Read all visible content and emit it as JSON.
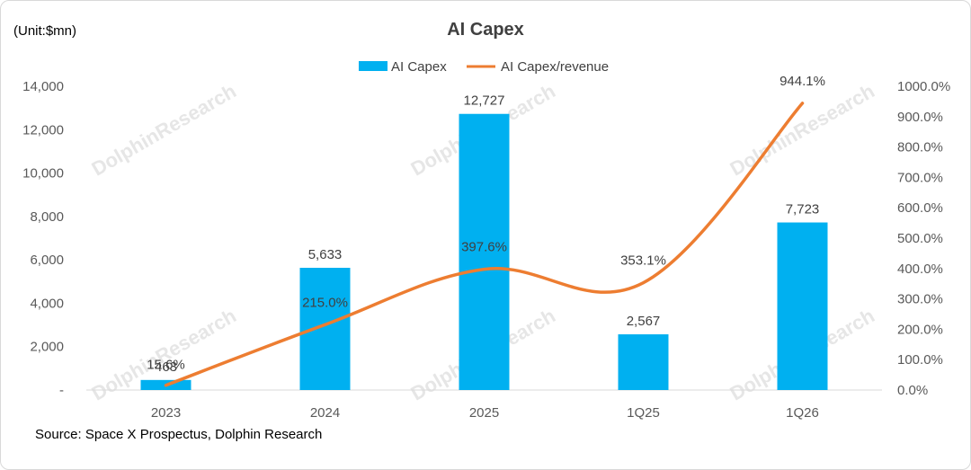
{
  "chart_data": {
    "type": "bar",
    "title": "AI Capex",
    "unit_label": "(Unit:$mn)",
    "categories": [
      "2023",
      "2024",
      "2025",
      "1Q25",
      "1Q26"
    ],
    "series": [
      {
        "name": "AI Capex",
        "kind": "bar",
        "axis": "left",
        "color": "#00B0F0",
        "values": [
          463,
          5633,
          12727,
          2567,
          7723
        ],
        "labels": [
          "463",
          "5,633",
          "12,727",
          "2,567",
          "7,723"
        ]
      },
      {
        "name": "AI Capex/revenue",
        "kind": "line",
        "axis": "right",
        "color": "#ED7D31",
        "values": [
          15.6,
          215.0,
          397.6,
          353.1,
          944.1
        ],
        "labels": [
          "15.6%",
          "215.0%",
          "397.6%",
          "353.1%",
          "944.1%"
        ]
      }
    ],
    "y_left": {
      "range": [
        0,
        14000
      ],
      "ticks": [
        0,
        2000,
        4000,
        6000,
        8000,
        10000,
        12000,
        14000
      ],
      "tick_labels": [
        "-",
        "2,000",
        "4,000",
        "6,000",
        "8,000",
        "10,000",
        "12,000",
        "14,000"
      ]
    },
    "y_right": {
      "range": [
        0,
        1000
      ],
      "ticks": [
        0,
        100,
        200,
        300,
        400,
        500,
        600,
        700,
        800,
        900,
        1000
      ],
      "tick_labels": [
        "0.0%",
        "100.0%",
        "200.0%",
        "300.0%",
        "400.0%",
        "500.0%",
        "600.0%",
        "700.0%",
        "800.0%",
        "900.0%",
        "1000.0%"
      ]
    },
    "grid": false,
    "legend_position": "top-center",
    "source": "Source: Space X Prospectus, Dolphin Research",
    "watermark": "DolphinResearch"
  }
}
